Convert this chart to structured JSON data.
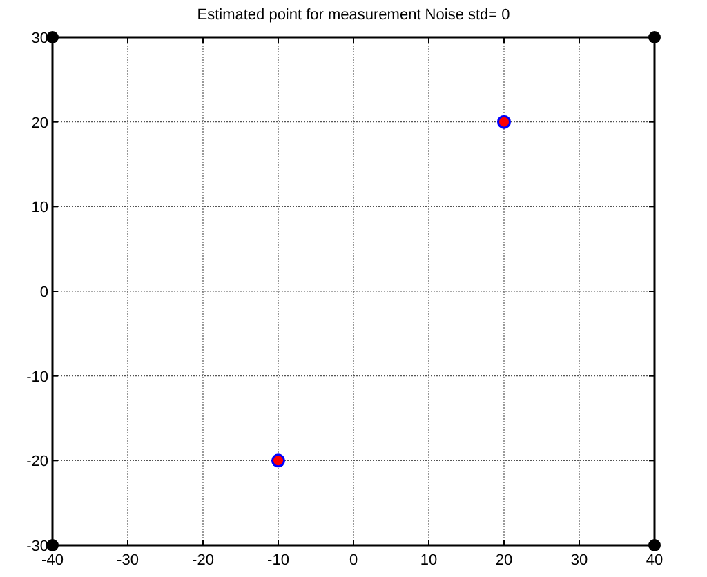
{
  "chart_data": {
    "type": "scatter",
    "title": "Estimated point for measurement Noise std= 0",
    "xlim": [
      -40,
      40
    ],
    "ylim": [
      -30,
      30
    ],
    "xticks": [
      -40,
      -30,
      -20,
      -10,
      0,
      10,
      20,
      30,
      40
    ],
    "yticks": [
      -30,
      -20,
      -10,
      0,
      10,
      20,
      30
    ],
    "grid": true,
    "marker": "circle",
    "series": [
      {
        "color": "#000000",
        "x": [
          -40,
          40,
          -40,
          40
        ],
        "values": [
          30,
          30,
          -30,
          -30
        ]
      },
      {
        "color": "#0000ff",
        "x": [
          20,
          -10
        ],
        "values": [
          20,
          -20
        ]
      },
      {
        "color": "#ff0000",
        "x": [
          20,
          -10
        ],
        "values": [
          20,
          -20
        ]
      }
    ]
  }
}
